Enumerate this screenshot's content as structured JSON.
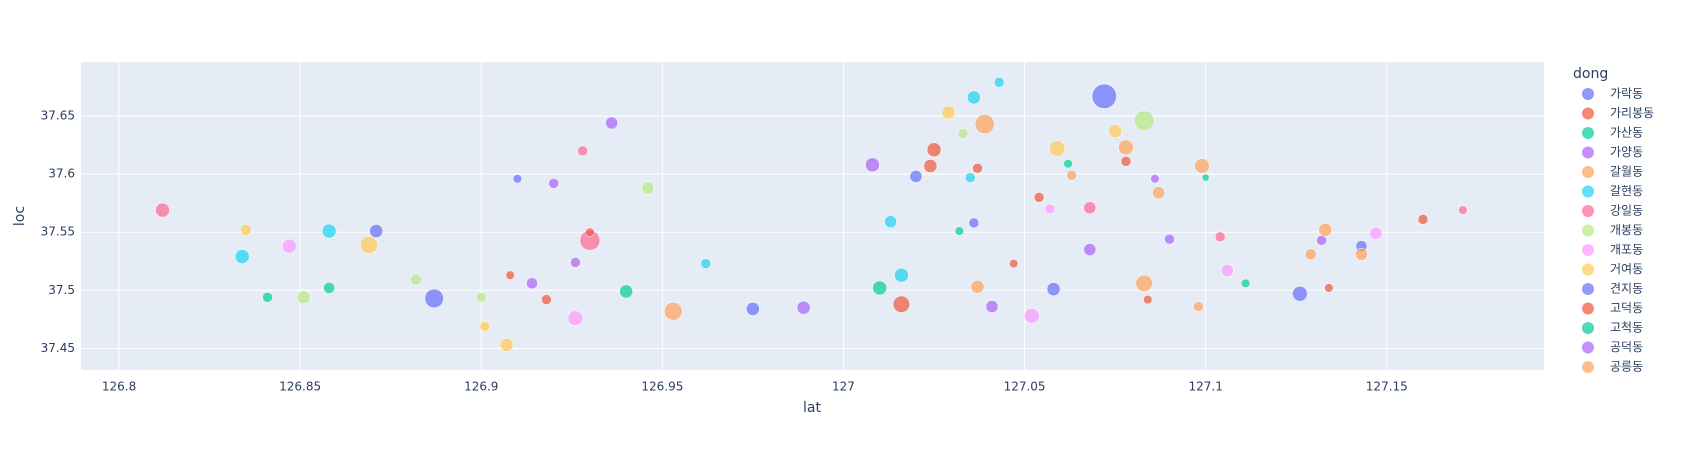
{
  "chart_data": {
    "type": "scatter",
    "xlabel": "lat",
    "ylabel": "loc",
    "legend_title": "dong",
    "legend_position": "right",
    "grid": true,
    "xlim": [
      126.7895,
      127.1934
    ],
    "ylim": [
      37.4314,
      37.6965
    ],
    "xticks": [
      126.8,
      126.85,
      126.9,
      126.95,
      127,
      127.05,
      127.1,
      127.15
    ],
    "yticks": [
      37.45,
      37.5,
      37.55,
      37.6,
      37.65
    ],
    "series": [
      {
        "name": "가락동",
        "color": "#636efa",
        "x": [
          127.072,
          126.887,
          126.871,
          127.126,
          127.058
        ],
        "values": [
          37.667,
          37.493,
          37.551,
          37.497,
          37.501
        ],
        "sizes": [
          24,
          14,
          7,
          9,
          7
        ]
      },
      {
        "name": "가리봉동",
        "color": "#EF553B",
        "x": [
          127.025,
          127.016,
          127.024,
          127.037,
          127.078,
          127.16,
          127.054
        ],
        "values": [
          37.621,
          37.488,
          37.607,
          37.605,
          37.611,
          37.561,
          37.58
        ],
        "sizes": [
          8,
          11,
          7,
          4,
          4,
          4,
          4
        ]
      },
      {
        "name": "가산동",
        "color": "#00cc96",
        "x": [
          127.01,
          126.94,
          126.858,
          126.841
        ],
        "values": [
          37.502,
          37.499,
          37.502,
          37.494
        ],
        "sizes": [
          8,
          7,
          5,
          4
        ]
      },
      {
        "name": "가양동",
        "color": "#ab63fa",
        "x": [
          126.936,
          127.008,
          127.041,
          126.989,
          127.068,
          127.09
        ],
        "values": [
          37.644,
          37.608,
          37.486,
          37.485,
          37.535,
          37.544
        ],
        "sizes": [
          6,
          8,
          6,
          7,
          6,
          4
        ]
      },
      {
        "name": "갈월동",
        "color": "#FFA15A",
        "x": [
          127.039,
          127.083,
          126.953,
          127.078,
          127.099,
          127.087
        ],
        "values": [
          37.643,
          37.506,
          37.482,
          37.623,
          37.607,
          37.584
        ],
        "sizes": [
          15,
          11,
          13,
          9,
          9,
          6
        ]
      },
      {
        "name": "갈현동",
        "color": "#19d3f3",
        "x": [
          127.036,
          126.858,
          126.834,
          127.016,
          127.013,
          127.043,
          127.035,
          126.962
        ],
        "values": [
          37.666,
          37.551,
          37.529,
          37.513,
          37.559,
          37.679,
          37.597,
          37.523
        ],
        "sizes": [
          7,
          8,
          8,
          8,
          6,
          4,
          4,
          4
        ]
      },
      {
        "name": "강일동",
        "color": "#FF6692",
        "x": [
          126.93,
          126.812,
          127.068,
          127.104,
          126.928,
          127.171
        ],
        "values": [
          37.543,
          37.569,
          37.571,
          37.546,
          37.62,
          37.569
        ],
        "sizes": [
          16,
          8,
          6,
          4,
          4,
          3
        ]
      },
      {
        "name": "개봉동",
        "color": "#B6E880",
        "x": [
          127.083,
          126.851,
          126.946,
          126.882,
          126.9,
          127.033
        ],
        "values": [
          37.646,
          37.494,
          37.588,
          37.509,
          37.494,
          37.635
        ],
        "sizes": [
          16,
          7,
          6,
          5,
          4,
          4
        ]
      },
      {
        "name": "개포동",
        "color": "#FF97FF",
        "x": [
          126.847,
          127.052,
          126.926,
          127.106,
          127.147,
          127.057
        ],
        "values": [
          37.538,
          37.478,
          37.476,
          37.517,
          37.549,
          37.57
        ],
        "sizes": [
          8,
          9,
          9,
          6,
          6,
          4
        ]
      },
      {
        "name": "거여동",
        "color": "#FECB52",
        "x": [
          126.869,
          127.029,
          127.075,
          127.059,
          126.907,
          126.835,
          126.901
        ],
        "values": [
          37.539,
          37.653,
          37.637,
          37.622,
          37.453,
          37.552,
          37.469
        ],
        "sizes": [
          12,
          7,
          7,
          10,
          7,
          5,
          4
        ]
      },
      {
        "name": "견지동",
        "color": "#636efa",
        "x": [
          126.975,
          127.143,
          127.036,
          127.02,
          126.91
        ],
        "values": [
          37.484,
          37.538,
          37.558,
          37.598,
          37.596
        ],
        "sizes": [
          7,
          5,
          4,
          6,
          3
        ]
      },
      {
        "name": "고덕동",
        "color": "#EF553B",
        "x": [
          126.918,
          126.93,
          127.047,
          127.084,
          127.134,
          126.908
        ],
        "values": [
          37.492,
          37.55,
          37.523,
          37.492,
          37.502,
          37.513
        ],
        "sizes": [
          4,
          3,
          3,
          3,
          3,
          3
        ]
      },
      {
        "name": "고척동",
        "color": "#00cc96",
        "x": [
          127.111,
          127.032,
          127.062,
          127.1
        ],
        "values": [
          37.506,
          37.551,
          37.609,
          37.597
        ],
        "sizes": [
          3,
          3,
          3,
          2
        ]
      },
      {
        "name": "공덕동",
        "color": "#ab63fa",
        "x": [
          127.086,
          126.914,
          126.92,
          126.926,
          127.132
        ],
        "values": [
          37.596,
          37.506,
          37.592,
          37.524,
          37.543
        ],
        "sizes": [
          3,
          5,
          4,
          4,
          4
        ]
      },
      {
        "name": "공릉동",
        "color": "#FFA15A",
        "x": [
          127.143,
          127.133,
          127.037,
          127.063,
          127.129,
          127.098
        ],
        "values": [
          37.531,
          37.552,
          37.503,
          37.599,
          37.531,
          37.486
        ],
        "sizes": [
          6,
          7,
          7,
          4,
          5,
          4
        ]
      }
    ]
  }
}
